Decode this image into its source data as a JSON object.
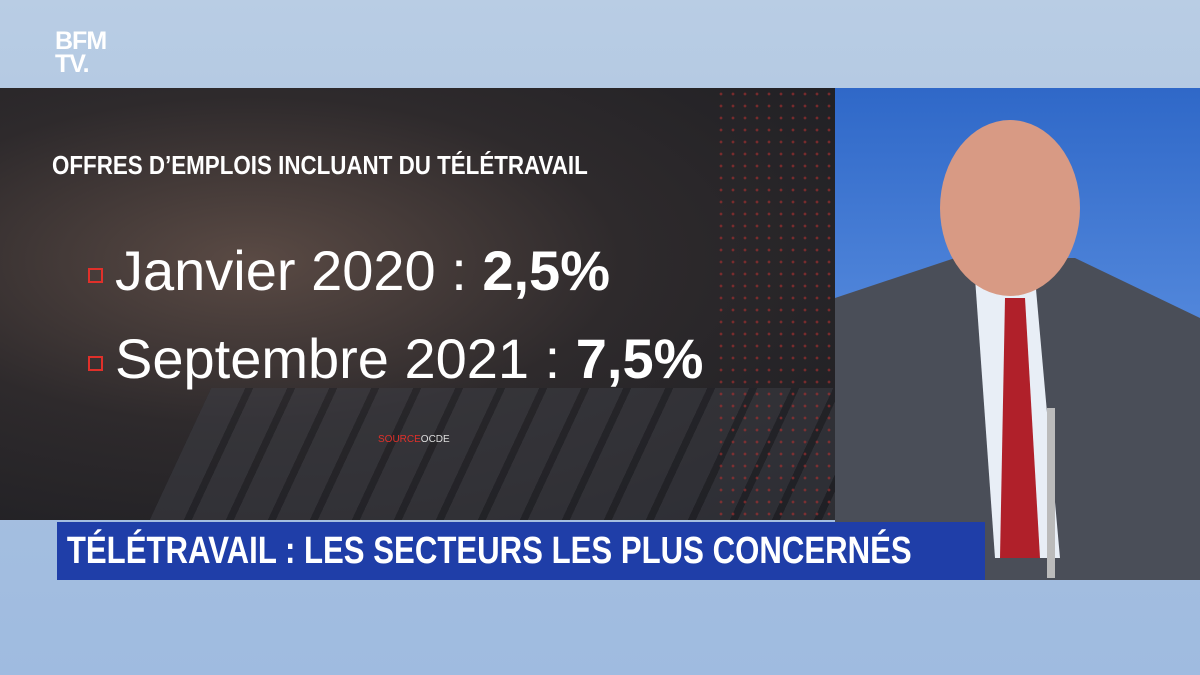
{
  "logo": {
    "line1": "BFM",
    "line2": "TV."
  },
  "panel": {
    "heading": "OFFRES D’EMPLOIS INCLUANT DU TÉLÉTRAVAIL",
    "items": [
      {
        "label": "Janvier 2020 :",
        "value": "2,5%"
      },
      {
        "label": "Septembre 2021 :",
        "value": "7,5%"
      }
    ],
    "source": {
      "prefix": "SOURCE",
      "name": "OCDE"
    }
  },
  "banner": {
    "title": "TÉLÉTRAVAIL : LES SECTEURS LES PLUS CONCERNÉS"
  }
}
